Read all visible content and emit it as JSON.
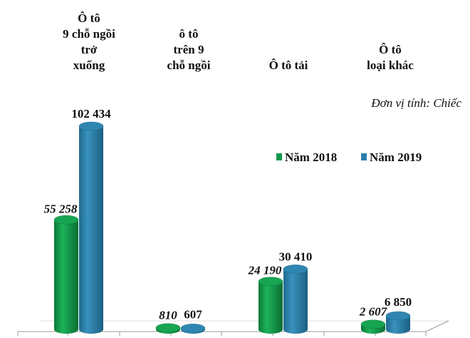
{
  "chart_data": {
    "type": "bar",
    "style": "3d-cylinder",
    "categories": [
      [
        "Ô tô",
        "9 chỗ ngồi",
        "trở",
        "xuống"
      ],
      [
        "ô tô",
        "trên 9",
        "chỗ ngồi"
      ],
      [
        "Ô tô tải"
      ],
      [
        "Ô tô",
        "loại khác"
      ]
    ],
    "series": [
      {
        "name": "Năm 2018",
        "values": [
          55258,
          810,
          24190,
          2607
        ],
        "labels": [
          "55 258",
          "810",
          "24 190",
          "2 607"
        ],
        "color": "#12994a"
      },
      {
        "name": "Năm 2019",
        "values": [
          102434,
          607,
          30410,
          6850
        ],
        "labels": [
          "102 434",
          "607",
          "30 410",
          "6 850"
        ],
        "color": "#2a7ea8"
      }
    ],
    "unit_note": "Đơn vị tính: Chiếc",
    "legend_position": "right",
    "grid": false,
    "ylim": [
      0,
      110000
    ]
  }
}
